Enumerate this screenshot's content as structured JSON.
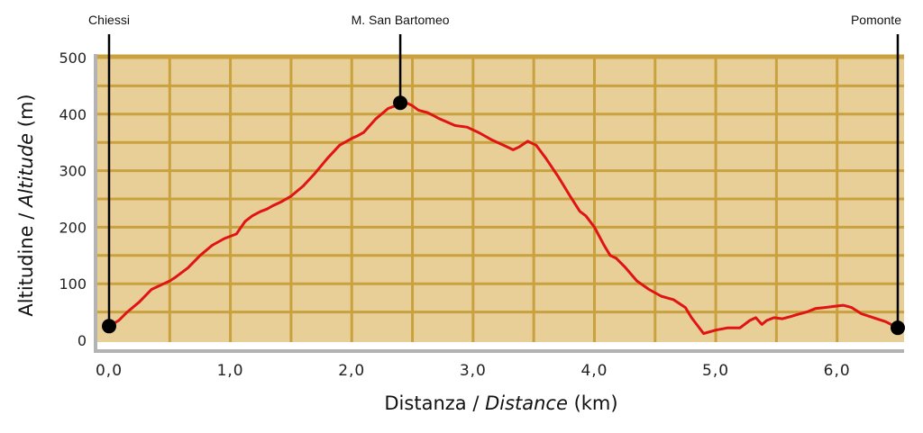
{
  "chart_data": {
    "type": "area",
    "xlabel_plain": "Distanza / ",
    "xlabel_italic": "Distance",
    "xlabel_unit": " (km)",
    "ylabel_plain": "Altitudine / ",
    "ylabel_italic": "Altitude",
    "ylabel_unit": " (m)",
    "xlim": [
      0,
      6.5
    ],
    "ylim": [
      0,
      500
    ],
    "x_ticks": [
      0,
      1,
      2,
      3,
      4,
      5,
      6
    ],
    "x_tick_labels": [
      "0,0",
      "1,0",
      "2,0",
      "3,0",
      "4,0",
      "5,0",
      "6,0"
    ],
    "y_ticks": [
      0,
      100,
      200,
      300,
      400,
      500
    ],
    "y_tick_labels": [
      "0",
      "100",
      "200",
      "300",
      "400",
      "500"
    ],
    "grid": true,
    "colors": {
      "plot_background": "#e8cf97",
      "grid_lines": "#c9a13f",
      "profile_line": "#e01414",
      "axis_line": "#b3b3b3",
      "marker": "#000000"
    },
    "waypoints": [
      {
        "name": "Chiessi",
        "x": 0.0,
        "y": 25
      },
      {
        "name": "M. San Bartomeo",
        "x": 2.4,
        "y": 420
      },
      {
        "name": "Pomonte",
        "x": 6.5,
        "y": 22
      }
    ],
    "series": [
      {
        "x": [
          0.0,
          0.08,
          0.15,
          0.25,
          0.35,
          0.45,
          0.5,
          0.55,
          0.65,
          0.75,
          0.85,
          0.95,
          1.05,
          1.12,
          1.18,
          1.25,
          1.3,
          1.35,
          1.42,
          1.5,
          1.6,
          1.7,
          1.8,
          1.9,
          2.0,
          2.05,
          2.1,
          2.15,
          2.2,
          2.3,
          2.4,
          2.45,
          2.5,
          2.55,
          2.62,
          2.67,
          2.72,
          2.85,
          2.95,
          3.05,
          3.15,
          3.25,
          3.33,
          3.38,
          3.45,
          3.52,
          3.6,
          3.7,
          3.8,
          3.88,
          3.93,
          4.0,
          4.08,
          4.13,
          4.18,
          4.25,
          4.35,
          4.45,
          4.55,
          4.6,
          4.65,
          4.75,
          4.8,
          4.9,
          5.0,
          5.1,
          5.2,
          5.28,
          5.33,
          5.38,
          5.42,
          5.48,
          5.55,
          5.62,
          5.68,
          5.75,
          5.82,
          5.9,
          5.98,
          6.05,
          6.12,
          6.2,
          6.3,
          6.4,
          6.5
        ],
        "y": [
          25,
          35,
          50,
          68,
          90,
          100,
          105,
          112,
          128,
          150,
          168,
          180,
          188,
          210,
          220,
          228,
          232,
          238,
          245,
          255,
          273,
          296,
          322,
          345,
          357,
          362,
          368,
          380,
          392,
          410,
          418,
          420,
          415,
          407,
          403,
          398,
          392,
          380,
          377,
          367,
          355,
          345,
          337,
          342,
          352,
          345,
          322,
          290,
          255,
          228,
          220,
          200,
          168,
          150,
          145,
          130,
          105,
          90,
          78,
          75,
          72,
          58,
          40,
          12,
          18,
          22,
          22,
          35,
          40,
          28,
          35,
          40,
          38,
          42,
          46,
          50,
          56,
          58,
          60,
          62,
          58,
          47,
          40,
          33,
          22
        ]
      }
    ]
  }
}
